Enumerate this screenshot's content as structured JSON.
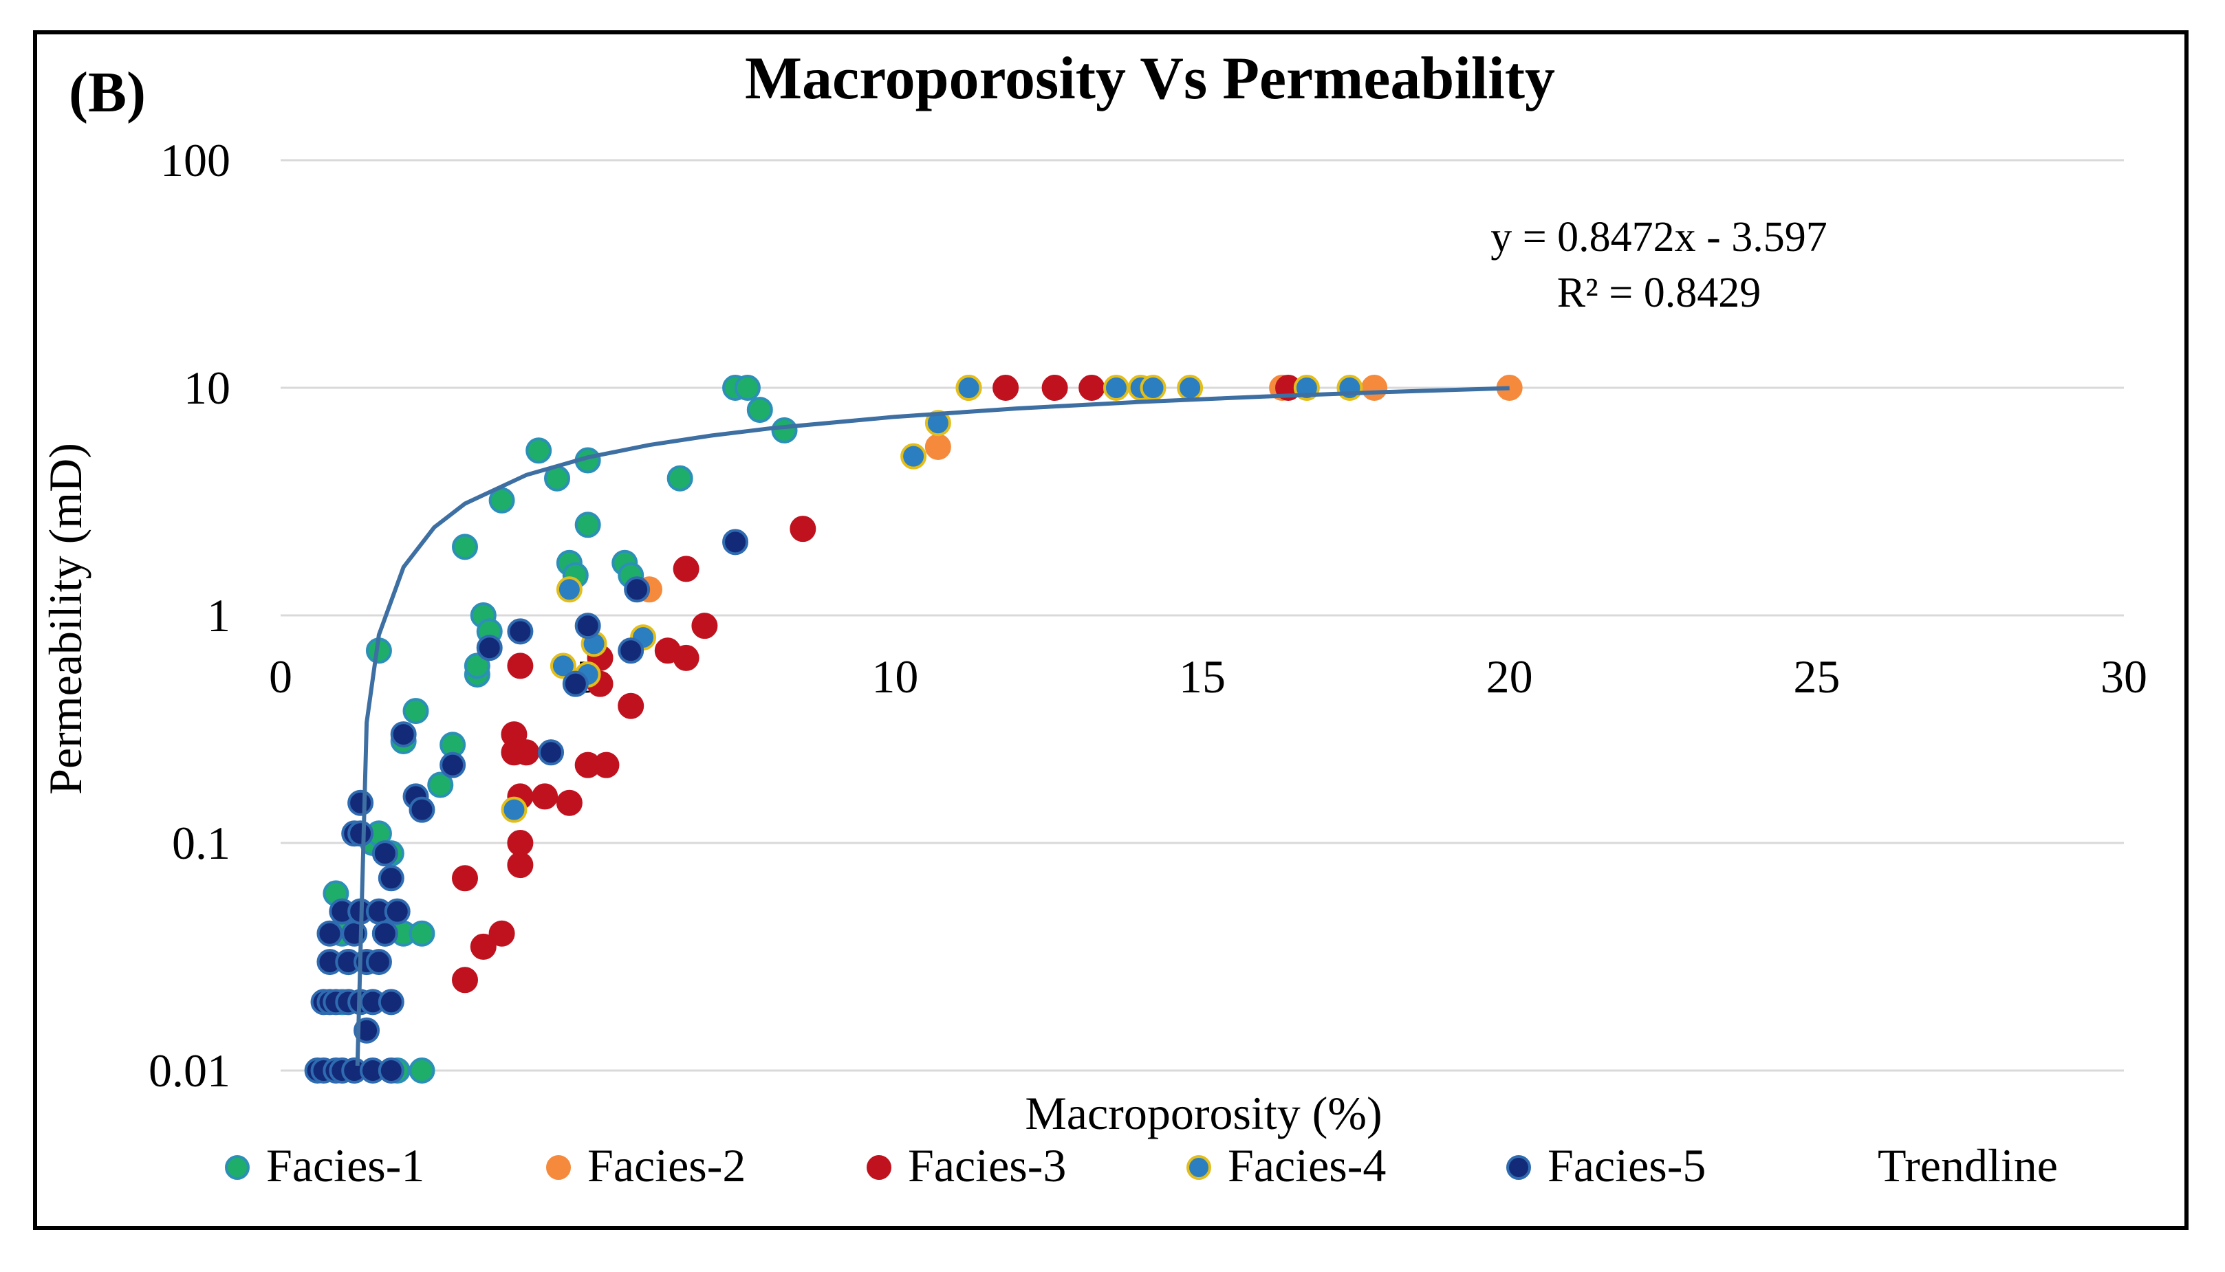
{
  "chart_data": {
    "type": "scatter",
    "panel_label": "(B)",
    "title": "Macroporosity Vs Permeability",
    "xlabel": "Macroporosity (%)",
    "ylabel": "Permeability (mD)",
    "xlim": [
      0,
      30
    ],
    "ylim": [
      0.01,
      100
    ],
    "yscale": "log",
    "grid": true,
    "legend_position": "bottom",
    "x_ticks": [
      "0",
      "5",
      "10",
      "15",
      "20",
      "25",
      "30"
    ],
    "y_ticks": [
      "0.01",
      "0.1",
      "1",
      "10",
      "100"
    ],
    "trendline": {
      "name": "Trendline",
      "equation": "y = 0.8472x - 3.597",
      "r_squared": "R² = 0.8429",
      "color": "#3d6fa3",
      "x": [
        1.25,
        1.4,
        1.6,
        2.0,
        2.5,
        3.0,
        4.0,
        5.0,
        6.0,
        7.0,
        8.0,
        10.0,
        12.0,
        14.0,
        16.0,
        18.0,
        20.0
      ]
    },
    "series": [
      {
        "name": "Facies-1",
        "color": "#1fae6a",
        "edge": "#2b8fb8",
        "points": [
          [
            0.9,
            0.06
          ],
          [
            1.0,
            0.04
          ],
          [
            1.0,
            0.02
          ],
          [
            1.1,
            0.03
          ],
          [
            1.2,
            0.01
          ],
          [
            1.3,
            0.05
          ],
          [
            1.4,
            0.03
          ],
          [
            1.5,
            0.1
          ],
          [
            1.6,
            0.11
          ],
          [
            1.6,
            0.7
          ],
          [
            1.7,
            0.04
          ],
          [
            1.8,
            0.09
          ],
          [
            1.9,
            0.01
          ],
          [
            2.0,
            0.04
          ],
          [
            2.0,
            0.28
          ],
          [
            2.2,
            0.38
          ],
          [
            2.3,
            0.04
          ],
          [
            2.3,
            0.01
          ],
          [
            2.6,
            0.18
          ],
          [
            2.8,
            0.27
          ],
          [
            3.0,
            2.0
          ],
          [
            3.2,
            0.55
          ],
          [
            3.2,
            0.6
          ],
          [
            3.3,
            1.0
          ],
          [
            3.4,
            0.85
          ],
          [
            3.6,
            3.2
          ],
          [
            4.2,
            5.3
          ],
          [
            4.5,
            4.0
          ],
          [
            4.7,
            1.7
          ],
          [
            4.8,
            1.5
          ],
          [
            5.0,
            2.5
          ],
          [
            5.0,
            4.8
          ],
          [
            5.6,
            1.7
          ],
          [
            5.7,
            1.5
          ],
          [
            6.5,
            4.0
          ],
          [
            7.4,
            10.0
          ],
          [
            7.6,
            10.0
          ],
          [
            7.8,
            8.0
          ],
          [
            8.2,
            6.5
          ]
        ]
      },
      {
        "name": "Facies-2",
        "color": "#f58a3d",
        "edge": "#f58a3d",
        "points": [
          [
            6.0,
            1.3
          ],
          [
            10.7,
            5.5
          ],
          [
            11.2,
            10.0
          ],
          [
            16.3,
            10.0
          ],
          [
            17.8,
            10.0
          ],
          [
            20.0,
            10.0
          ]
        ]
      },
      {
        "name": "Facies-3",
        "color": "#c0121e",
        "edge": "#c0121e",
        "points": [
          [
            3.0,
            0.025
          ],
          [
            3.0,
            0.07
          ],
          [
            3.3,
            0.035
          ],
          [
            3.6,
            0.04
          ],
          [
            3.8,
            0.3
          ],
          [
            3.8,
            0.25
          ],
          [
            3.9,
            0.1
          ],
          [
            3.9,
            0.08
          ],
          [
            3.9,
            0.16
          ],
          [
            3.9,
            0.6
          ],
          [
            4.0,
            0.25
          ],
          [
            4.3,
            0.16
          ],
          [
            4.7,
            0.15
          ],
          [
            5.0,
            0.22
          ],
          [
            5.2,
            0.65
          ],
          [
            5.2,
            0.5
          ],
          [
            5.3,
            0.22
          ],
          [
            5.7,
            0.4
          ],
          [
            6.3,
            0.7
          ],
          [
            6.6,
            0.65
          ],
          [
            6.6,
            1.6
          ],
          [
            6.9,
            0.9
          ],
          [
            8.5,
            2.4
          ],
          [
            11.8,
            10.0
          ],
          [
            12.6,
            10.0
          ],
          [
            13.2,
            10.0
          ],
          [
            16.4,
            10.0
          ]
        ]
      },
      {
        "name": "Facies-4",
        "color": "#2b7fc1",
        "edge": "#e3be1a",
        "points": [
          [
            3.8,
            0.14
          ],
          [
            4.6,
            0.6
          ],
          [
            4.7,
            1.3
          ],
          [
            5.0,
            0.55
          ],
          [
            5.1,
            0.75
          ],
          [
            5.9,
            0.8
          ],
          [
            10.3,
            5.0
          ],
          [
            10.7,
            7.0
          ],
          [
            11.2,
            10.0
          ],
          [
            13.6,
            10.0
          ],
          [
            14.0,
            10.0
          ],
          [
            14.2,
            10.0
          ],
          [
            14.8,
            10.0
          ],
          [
            16.7,
            10.0
          ],
          [
            17.4,
            10.0
          ]
        ]
      },
      {
        "name": "Facies-5",
        "color": "#132a78",
        "edge": "#2f6bb0",
        "points": [
          [
            0.6,
            0.01
          ],
          [
            0.7,
            0.01
          ],
          [
            0.7,
            0.02
          ],
          [
            0.8,
            0.03
          ],
          [
            0.8,
            0.04
          ],
          [
            0.8,
            0.02
          ],
          [
            0.9,
            0.01
          ],
          [
            0.9,
            0.02
          ],
          [
            1.0,
            0.05
          ],
          [
            1.0,
            0.01
          ],
          [
            1.1,
            0.02
          ],
          [
            1.1,
            0.03
          ],
          [
            1.2,
            0.11
          ],
          [
            1.2,
            0.04
          ],
          [
            1.2,
            0.01
          ],
          [
            1.3,
            0.15
          ],
          [
            1.3,
            0.11
          ],
          [
            1.3,
            0.05
          ],
          [
            1.3,
            0.02
          ],
          [
            1.4,
            0.015
          ],
          [
            1.4,
            0.03
          ],
          [
            1.5,
            0.02
          ],
          [
            1.5,
            0.01
          ],
          [
            1.6,
            0.05
          ],
          [
            1.6,
            0.03
          ],
          [
            1.7,
            0.09
          ],
          [
            1.7,
            0.04
          ],
          [
            1.8,
            0.07
          ],
          [
            1.8,
            0.02
          ],
          [
            1.8,
            0.01
          ],
          [
            1.9,
            0.05
          ],
          [
            2.0,
            0.3
          ],
          [
            2.2,
            0.16
          ],
          [
            2.3,
            0.14
          ],
          [
            2.8,
            0.22
          ],
          [
            3.4,
            0.72
          ],
          [
            3.9,
            0.85
          ],
          [
            4.4,
            0.25
          ],
          [
            4.8,
            0.5
          ],
          [
            5.0,
            0.9
          ],
          [
            5.7,
            0.7
          ],
          [
            5.8,
            1.3
          ],
          [
            7.4,
            2.1
          ]
        ]
      }
    ]
  }
}
